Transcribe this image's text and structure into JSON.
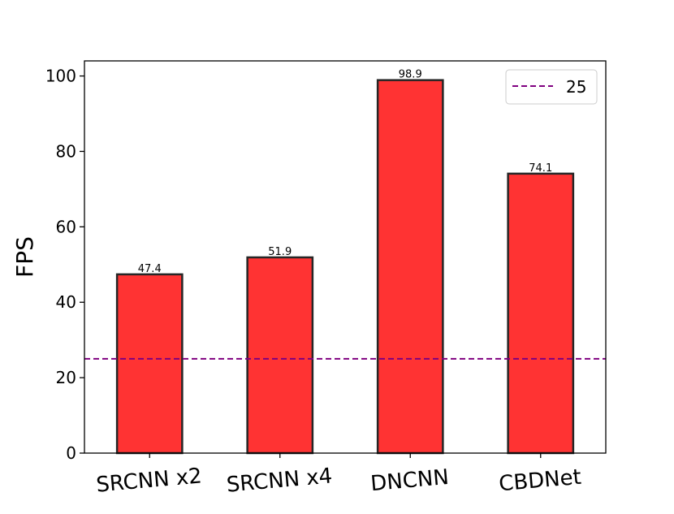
{
  "chart_data": {
    "type": "bar",
    "categories": [
      "SRCNN x2",
      "SRCNN x4",
      "DNCNN",
      "CBDNet"
    ],
    "values": [
      47.4,
      51.9,
      98.9,
      74.1
    ],
    "data_labels": [
      "47.4",
      "51.9",
      "98.9",
      "74.1"
    ],
    "ylabel": "FPS",
    "xlabel": "",
    "ylim": [
      0,
      104
    ],
    "yticks": [
      0,
      20,
      40,
      60,
      80,
      100
    ],
    "ytick_labels": [
      "0",
      "20",
      "40",
      "60",
      "80",
      "100"
    ],
    "reference_line": {
      "value": 25,
      "label": "25",
      "style": "dashed",
      "color": "#800080"
    },
    "bar_color": "#ff3333",
    "bar_edge_color": "#262626",
    "grid": false,
    "legend": {
      "position": "top-right",
      "entries": [
        "25"
      ]
    }
  }
}
